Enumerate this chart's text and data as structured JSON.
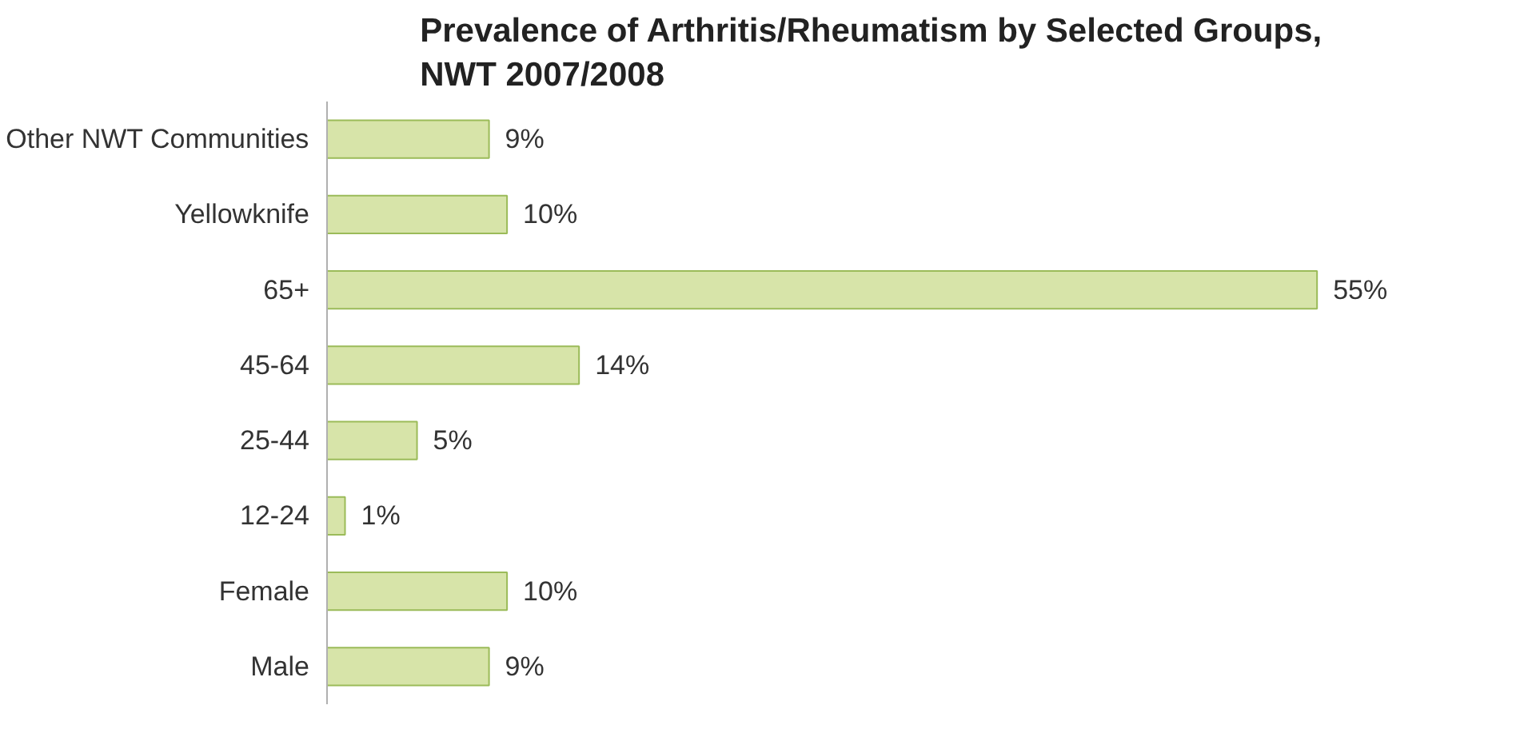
{
  "chart_data": {
    "type": "bar",
    "orientation": "horizontal",
    "title": "Prevalence of Arthritis/Rheumatism by Selected Groups,\nNWT 2007/2008",
    "categories": [
      "Other NWT Communities",
      "Yellowknife",
      "65+",
      "45-64",
      "25-44",
      "12-24",
      "Female",
      "Male"
    ],
    "values": [
      9,
      10,
      55,
      14,
      5,
      1,
      10,
      9
    ],
    "value_labels": [
      "9%",
      "10%",
      "55%",
      "14%",
      "5%",
      "1%",
      "10%",
      "9%"
    ],
    "color": "#d7e4a9",
    "grid": false
  }
}
